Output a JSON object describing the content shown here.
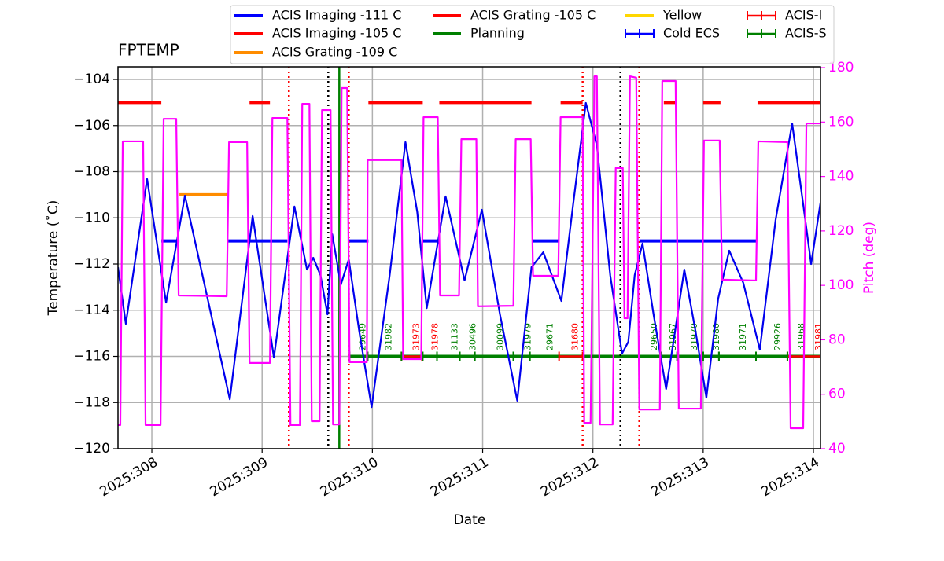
{
  "chart_data": {
    "type": "line",
    "title": "FPTEMP",
    "xlabel": "Date",
    "ylabel": "Temperature (˚C)",
    "y2label": "Pitch (deg)",
    "y2color": "#ff00ff",
    "grid": true,
    "xlim": [
      307.693,
      314.064
    ],
    "ylim": [
      -120,
      -103.455
    ],
    "y2lim": [
      40,
      180.3
    ],
    "xticks": [
      {
        "value": 308,
        "label": "2025:308"
      },
      {
        "value": 309,
        "label": "2025:309"
      },
      {
        "value": 310,
        "label": "2025:310"
      },
      {
        "value": 311,
        "label": "2025:311"
      },
      {
        "value": 312,
        "label": "2025:312"
      },
      {
        "value": 313,
        "label": "2025:313"
      },
      {
        "value": 314,
        "label": "2025:314"
      }
    ],
    "yticks": [
      {
        "value": -120,
        "label": "−120"
      },
      {
        "value": -118,
        "label": "−118"
      },
      {
        "value": -116,
        "label": "−116"
      },
      {
        "value": -114,
        "label": "−114"
      },
      {
        "value": -112,
        "label": "−112"
      },
      {
        "value": -110,
        "label": "−110"
      },
      {
        "value": -108,
        "label": "−108"
      },
      {
        "value": -106,
        "label": "−106"
      },
      {
        "value": -104,
        "label": "−104"
      }
    ],
    "y2ticks": [
      40,
      60,
      80,
      100,
      120,
      140,
      160,
      180
    ],
    "temperature": {
      "color": "#0000ee",
      "x": [
        307.693,
        307.764,
        307.957,
        308.129,
        308.3,
        308.707,
        308.914,
        309.107,
        309.293,
        309.407,
        309.464,
        309.529,
        309.593,
        309.636,
        309.714,
        309.786,
        309.879,
        309.993,
        310.157,
        310.3,
        310.407,
        310.493,
        310.664,
        310.836,
        310.993,
        311.157,
        311.314,
        311.443,
        311.55,
        311.714,
        311.821,
        311.936,
        312.036,
        312.157,
        312.264,
        312.321,
        312.379,
        312.45,
        312.55,
        312.664,
        312.736,
        312.829,
        312.929,
        313.029,
        313.136,
        313.236,
        313.364,
        313.514,
        313.657,
        313.807,
        313.907,
        313.979,
        314.064
      ],
      "values": [
        -112.14,
        -114.59,
        -108.32,
        -113.67,
        -109.04,
        -117.86,
        -109.92,
        -116.05,
        -109.51,
        -112.24,
        -111.73,
        -112.48,
        -114.18,
        -110.71,
        -112.89,
        -111.8,
        -114.86,
        -118.2,
        -112.48,
        -106.72,
        -109.75,
        -113.91,
        -109.07,
        -112.71,
        -109.65,
        -114.18,
        -117.92,
        -112.14,
        -111.49,
        -113.6,
        -109.41,
        -105.02,
        -106.86,
        -112.48,
        -115.88,
        -115.37,
        -112.48,
        -111.11,
        -114.18,
        -117.41,
        -115.2,
        -112.24,
        -114.86,
        -117.79,
        -113.5,
        -111.42,
        -112.82,
        -115.71,
        -110.09,
        -105.91,
        -109.41,
        -112.0,
        -109.34
      ]
    },
    "pitch": {
      "color": "#ff00ff",
      "axis": "y2",
      "x": [
        307.693,
        307.714,
        307.736,
        307.921,
        307.943,
        308.079,
        308.107,
        308.221,
        308.243,
        308.679,
        308.7,
        308.864,
        308.886,
        309.071,
        309.093,
        309.229,
        309.257,
        309.343,
        309.364,
        309.429,
        309.45,
        309.521,
        309.543,
        309.621,
        309.643,
        309.7,
        309.721,
        309.771,
        309.793,
        309.95,
        309.957,
        310.264,
        310.279,
        310.443,
        310.464,
        310.593,
        310.614,
        310.786,
        310.807,
        310.943,
        310.957,
        311.279,
        311.3,
        311.436,
        311.457,
        311.686,
        311.707,
        311.907,
        311.921,
        311.979,
        312.014,
        312.036,
        312.064,
        312.179,
        312.207,
        312.271,
        312.286,
        312.314,
        312.336,
        312.393,
        312.421,
        312.607,
        312.629,
        312.75,
        312.779,
        312.979,
        313.007,
        313.15,
        313.171,
        313.479,
        313.5,
        313.764,
        313.793,
        313.907,
        313.936,
        314.064
      ],
      "values": [
        48.7,
        48.7,
        152.9,
        152.9,
        48.7,
        48.7,
        161.2,
        161.2,
        96.3,
        96.0,
        152.6,
        152.6,
        71.5,
        71.5,
        161.5,
        161.5,
        48.7,
        48.7,
        166.7,
        166.7,
        50.1,
        50.1,
        164.4,
        164.4,
        48.9,
        48.9,
        172.5,
        172.5,
        71.8,
        71.8,
        146.0,
        146.0,
        72.9,
        72.9,
        161.8,
        161.8,
        96.3,
        96.3,
        153.7,
        153.7,
        92.3,
        92.5,
        153.7,
        153.7,
        103.5,
        103.5,
        161.8,
        161.8,
        49.5,
        49.5,
        176.8,
        176.8,
        48.9,
        48.9,
        143.1,
        143.1,
        87.9,
        87.9,
        176.8,
        176.3,
        54.4,
        54.4,
        175.1,
        175.1,
        54.7,
        54.7,
        153.2,
        153.2,
        102.1,
        101.8,
        152.9,
        152.6,
        47.5,
        47.5,
        159.5,
        159.5
      ]
    },
    "limits": [
      {
        "name": "ACIS Imaging -111 C",
        "color": "#0000ff",
        "style": "line",
        "value": -111,
        "segments": [
          [
            308.086,
            308.25
          ],
          [
            308.693,
            309.229
          ],
          [
            309.786,
            309.964
          ],
          [
            310.457,
            310.607
          ],
          [
            311.45,
            311.693
          ],
          [
            312.421,
            313.479
          ]
        ]
      },
      {
        "name": "ACIS Imaging -105 C",
        "color": "#ff0000",
        "style": "line",
        "value": -105,
        "segments": [
          [
            307.693,
            308.086
          ],
          [
            308.886,
            309.071
          ],
          [
            309.964,
            310.457
          ],
          [
            310.607,
            311.443
          ],
          [
            312.643,
            312.75
          ],
          [
            313.0,
            313.157
          ],
          [
            313.493,
            314.064
          ]
        ]
      },
      {
        "name": "ACIS Grating -109 C",
        "color": "#ff8c00",
        "style": "line",
        "value": -109,
        "segments": [
          [
            308.25,
            308.693
          ]
        ]
      },
      {
        "name": "ACIS Grating -105 C",
        "color": "#ff0000",
        "style": "line",
        "value": -105,
        "segments": [
          [
            311.707,
            311.907
          ]
        ]
      },
      {
        "name": "Planning",
        "color": "#008000",
        "style": "line",
        "value": -116,
        "segments": [
          [
            309.793,
            314.064
          ]
        ]
      },
      {
        "name": "Yellow",
        "color": "#ffd700",
        "style": "line",
        "value": -116,
        "segments": []
      },
      {
        "name": "Cold ECS",
        "color": "#0000ff",
        "style": "errorbar",
        "value": -116,
        "segments": []
      },
      {
        "name": "ACIS-I",
        "color": "#ff0000",
        "style": "errorbar",
        "value": -116,
        "segments": [
          [
            310.264,
            310.45
          ],
          [
            311.693,
            311.907
          ],
          [
            313.764,
            313.914
          ],
          [
            313.914,
            314.064
          ]
        ]
      },
      {
        "name": "ACIS-S",
        "color": "#008000",
        "style": "errorbar",
        "value": -116,
        "segments": [
          [
            309.793,
            309.957
          ],
          [
            309.957,
            310.264
          ],
          [
            310.457,
            310.586
          ],
          [
            310.586,
            310.793
          ],
          [
            310.793,
            310.929
          ],
          [
            310.929,
            311.279
          ],
          [
            311.279,
            311.429
          ],
          [
            312.421,
            312.621
          ],
          [
            312.621,
            312.764
          ],
          [
            312.764,
            313.0
          ],
          [
            313.0,
            313.143
          ],
          [
            313.143,
            313.479
          ],
          [
            313.479,
            313.764
          ]
        ]
      }
    ],
    "vlines": [
      {
        "x": 309.243,
        "color": "#ff0000",
        "style": "dotted"
      },
      {
        "x": 309.6,
        "color": "#000000",
        "style": "dotted"
      },
      {
        "x": 309.7,
        "color": "#008000",
        "style": "solid"
      },
      {
        "x": 309.786,
        "color": "#ff0000",
        "style": "dotted"
      },
      {
        "x": 311.907,
        "color": "#ff0000",
        "style": "dotted"
      },
      {
        "x": 312.25,
        "color": "#000000",
        "style": "dotted"
      },
      {
        "x": 312.421,
        "color": "#ff0000",
        "style": "dotted"
      }
    ],
    "annotations": [
      {
        "x": 309.914,
        "text": "29649",
        "color": "#008000"
      },
      {
        "x": 310.15,
        "text": "31982",
        "color": "#008000"
      },
      {
        "x": 310.4,
        "text": "31973",
        "color": "#ff0000"
      },
      {
        "x": 310.571,
        "text": "31978",
        "color": "#ff0000"
      },
      {
        "x": 310.75,
        "text": "31133",
        "color": "#008000"
      },
      {
        "x": 310.914,
        "text": "30496",
        "color": "#008000"
      },
      {
        "x": 311.164,
        "text": "30099",
        "color": "#008000"
      },
      {
        "x": 311.414,
        "text": "31979",
        "color": "#008000"
      },
      {
        "x": 311.614,
        "text": "29671",
        "color": "#008000"
      },
      {
        "x": 311.843,
        "text": "31680",
        "color": "#ff0000"
      },
      {
        "x": 312.557,
        "text": "29650",
        "color": "#008000"
      },
      {
        "x": 312.729,
        "text": "31967",
        "color": "#008000"
      },
      {
        "x": 312.921,
        "text": "31970",
        "color": "#008000"
      },
      {
        "x": 313.121,
        "text": "31980",
        "color": "#008000"
      },
      {
        "x": 313.364,
        "text": "31971",
        "color": "#008000"
      },
      {
        "x": 313.679,
        "text": "29926",
        "color": "#008000"
      },
      {
        "x": 313.893,
        "text": "31968",
        "color": "#008000"
      },
      {
        "x": 314.05,
        "text": "31981",
        "color": "#ff0000"
      }
    ]
  }
}
